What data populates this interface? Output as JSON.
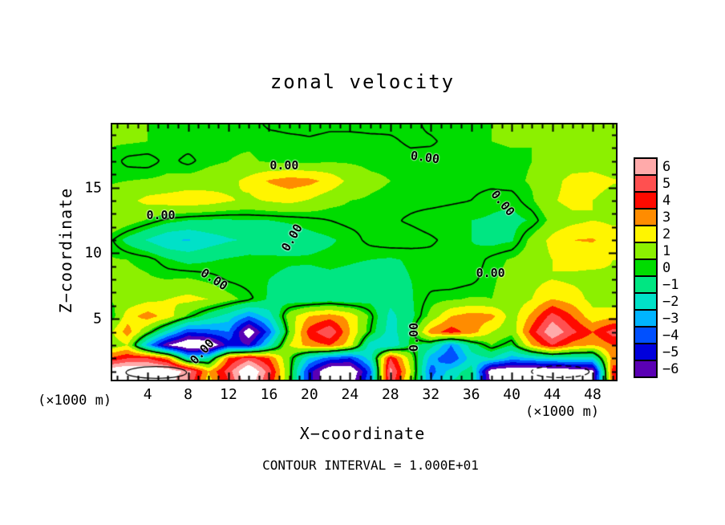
{
  "title": "zonal velocity",
  "xlabel": "X−coordinate",
  "ylabel": "Z−coordinate",
  "unit_label_left": "(×1000 m)",
  "unit_label_right": "(×1000 m)",
  "footer": "CONTOUR INTERVAL = 1.000E+01",
  "chart_data": {
    "type": "heatmap",
    "x_range": [
      0.5,
      50.3
    ],
    "z_range": [
      0.37,
      19.8
    ],
    "x_ticks_major": [
      4,
      8,
      12,
      16,
      20,
      24,
      28,
      32,
      36,
      40,
      44,
      48
    ],
    "x_tick_minor_step": 1,
    "y_ticks_major": [
      5,
      10,
      15
    ],
    "y_tick_minor_step": 1,
    "contour_interval": 10.0,
    "contour_label_text": "0.00",
    "colorbar": {
      "values": [
        6,
        5,
        4,
        3,
        2,
        1,
        0,
        -1,
        -2,
        -3,
        -4,
        -5,
        -6
      ],
      "labels": [
        "6",
        "5",
        "4",
        "3",
        "2",
        "1",
        "0",
        "−1",
        "−2",
        "−3",
        "−4",
        "−5",
        "−6"
      ],
      "colors": [
        "#FFAAAA",
        "#FF5050",
        "#FF0A00",
        "#FF8C00",
        "#FFF500",
        "#8CF000",
        "#00DC00",
        "#00E682",
        "#00E1C8",
        "#00B4FF",
        "#0050FF",
        "#0000DC",
        "#5A00B4"
      ],
      "out_of_range_color": "#FFFFFF"
    },
    "grid": {
      "x": [
        0,
        2,
        4,
        6,
        8,
        10,
        12,
        14,
        16,
        18,
        20,
        22,
        24,
        26,
        28,
        30,
        32,
        34,
        36,
        38,
        40,
        42,
        44,
        46,
        48,
        50
      ],
      "rows": [
        {
          "z": 20.0,
          "v": [
            0.5,
            0.5,
            0.5,
            0.5,
            0.5,
            0.4,
            0.4,
            0.3,
            -0.2,
            -0.3,
            -0.3,
            -0.2,
            -0.3,
            -0.3,
            -0.2,
            -0.2,
            0.2,
            0.4,
            0.5,
            0.5,
            0.5,
            0.5,
            0.5,
            0.5,
            0.5,
            0.5
          ]
        },
        {
          "z": 18.5,
          "v": [
            0.6,
            0.6,
            0.5,
            0.4,
            0.3,
            0.3,
            0.4,
            0.4,
            0.3,
            0.2,
            0.1,
            0.2,
            0.3,
            0.2,
            0.1,
            -0.1,
            -0.1,
            0.2,
            0.4,
            0.5,
            0.6,
            0.5,
            0.5,
            0.6,
            0.6,
            0.6
          ]
        },
        {
          "z": 17.0,
          "v": [
            0.4,
            -0.2,
            -0.3,
            0.2,
            -0.2,
            0.3,
            0.5,
            0.6,
            0.4,
            0.2,
            0.3,
            0.4,
            0.4,
            0.3,
            0.3,
            0.2,
            0.3,
            0.4,
            0.3,
            0.2,
            0.3,
            0.5,
            0.8,
            1.0,
            0.9,
            0.7
          ]
        },
        {
          "z": 15.5,
          "v": [
            0.4,
            0.5,
            0.6,
            0.7,
            0.9,
            1.0,
            1.2,
            1.8,
            2.6,
            3.0,
            2.8,
            2.2,
            1.2,
            0.7,
            0.5,
            0.4,
            0.3,
            0.3,
            0.2,
            0.2,
            0.3,
            0.6,
            1.2,
            1.8,
            2.0,
            1.6
          ]
        },
        {
          "z": 14.0,
          "v": [
            0.8,
            1.2,
            1.8,
            2.0,
            2.2,
            2.0,
            1.6,
            1.3,
            1.6,
            1.8,
            1.4,
            0.8,
            0.5,
            0.4,
            0.3,
            0.2,
            0.2,
            0.1,
            0.0,
            -0.3,
            -0.3,
            0.4,
            1.4,
            1.8,
            1.5,
            1.0
          ]
        },
        {
          "z": 12.5,
          "v": [
            1.5,
            1.0,
            0.4,
            -0.2,
            -0.5,
            -0.6,
            -0.6,
            -0.5,
            -0.5,
            -0.4,
            -0.2,
            0.0,
            0.2,
            0.2,
            0.1,
            -0.1,
            -0.3,
            -0.4,
            -0.5,
            -0.6,
            -0.8,
            -0.4,
            0.8,
            1.2,
            1.5,
            1.3
          ]
        },
        {
          "z": 11.0,
          "v": [
            0.3,
            -0.8,
            -1.6,
            -2.4,
            -2.6,
            -2.0,
            -1.6,
            -1.4,
            -1.2,
            -1.0,
            -0.8,
            -0.6,
            -0.3,
            0.2,
            0.4,
            0.3,
            0.1,
            -0.2,
            -0.5,
            -0.8,
            -0.6,
            0.8,
            1.8,
            2.5,
            2.6,
            2.0
          ]
        },
        {
          "z": 9.5,
          "v": [
            0.6,
            0.5,
            0.3,
            -0.4,
            -0.8,
            -0.6,
            -0.4,
            -0.2,
            -0.3,
            -0.4,
            -0.4,
            -0.3,
            -0.4,
            -0.5,
            -0.6,
            -0.4,
            -0.2,
            -0.3,
            -0.4,
            0.2,
            0.6,
            1.0,
            1.5,
            1.8,
            1.8,
            1.5
          ]
        },
        {
          "z": 8.0,
          "v": [
            0.8,
            0.7,
            0.6,
            0.5,
            0.6,
            0.3,
            -0.1,
            -0.3,
            -0.5,
            -0.7,
            -0.8,
            -0.7,
            -0.8,
            -1.0,
            -0.8,
            -0.5,
            -0.3,
            -0.4,
            -0.2,
            0.4,
            0.8,
            1.2,
            1.5,
            1.3,
            1.2,
            1.4
          ]
        },
        {
          "z": 6.5,
          "v": [
            0.5,
            0.8,
            1.2,
            1.5,
            1.8,
            1.5,
            0.8,
            0.2,
            -0.6,
            -1.0,
            -1.2,
            -1.0,
            -1.2,
            -0.8,
            -1.2,
            -0.6,
            0.2,
            0.4,
            0.6,
            0.5,
            0.8,
            1.5,
            2.5,
            2.0,
            1.2,
            0.8
          ]
        },
        {
          "z": 5.2,
          "v": [
            -0.5,
            2.0,
            3.0,
            2.0,
            0.3,
            -1.0,
            -2.0,
            -3.5,
            -2.0,
            1.0,
            2.5,
            3.0,
            2.2,
            0.3,
            -1.8,
            -0.8,
            0.8,
            2.5,
            3.0,
            2.8,
            1.0,
            2.8,
            5.0,
            3.5,
            1.8,
            2.2
          ]
        },
        {
          "z": 4.0,
          "v": [
            1.0,
            3.0,
            0.5,
            -2.0,
            -4.5,
            -4.0,
            -3.5,
            -7.5,
            -4.0,
            0.5,
            4.0,
            5.5,
            2.5,
            0.0,
            -2.0,
            -0.5,
            3.0,
            4.0,
            3.0,
            1.5,
            0.8,
            4.0,
            6.5,
            4.8,
            3.5,
            5.0
          ]
        },
        {
          "z": 3.0,
          "v": [
            0.5,
            1.5,
            -3.0,
            -6.5,
            -8.0,
            -8.0,
            -5.0,
            -5.5,
            -2.0,
            1.5,
            3.0,
            3.5,
            2.0,
            -2.0,
            -2.5,
            -0.3,
            -1.0,
            -3.5,
            -1.0,
            0.5,
            -0.5,
            2.5,
            4.5,
            3.0,
            2.5,
            3.5
          ]
        },
        {
          "z": 2.0,
          "v": [
            3.5,
            4.5,
            4.5,
            3.0,
            -2.0,
            -1.5,
            3.5,
            5.0,
            3.5,
            0.5,
            -2.5,
            -4.0,
            -4.5,
            -2.0,
            4.5,
            1.0,
            -3.0,
            -4.5,
            -2.0,
            -1.5,
            -3.0,
            -2.5,
            -2.0,
            -2.0,
            -2.0,
            3.0
          ]
        },
        {
          "z": 1.0,
          "v": [
            7.5,
            8.0,
            8.0,
            7.5,
            6.0,
            2.5,
            5.0,
            8.0,
            5.0,
            0.5,
            -5.0,
            -8.0,
            -8.0,
            -4.0,
            6.0,
            1.5,
            -4.0,
            -2.0,
            -1.0,
            -7.5,
            -8.0,
            -8.0,
            -8.0,
            -7.5,
            -7.0,
            4.0
          ]
        },
        {
          "z": 0.3,
          "v": [
            7.0,
            8.0,
            8.0,
            7.0,
            5.5,
            2.0,
            4.5,
            7.5,
            4.5,
            0.5,
            -5.0,
            -8.0,
            -7.5,
            -3.5,
            5.5,
            1.0,
            -3.5,
            -1.5,
            -1.0,
            -7.0,
            -8.0,
            -8.0,
            -8.0,
            -7.0,
            -6.5,
            3.5
          ]
        }
      ]
    },
    "contour_zero_labels": [
      {
        "x": 5.3,
        "z": 12.9,
        "rot": 0
      },
      {
        "x": 17.5,
        "z": 16.7,
        "rot": 0
      },
      {
        "x": 31.4,
        "z": 17.3,
        "rot": 8
      },
      {
        "x": 39.1,
        "z": 13.8,
        "rot": 50
      },
      {
        "x": 10.6,
        "z": 8.0,
        "rot": 33
      },
      {
        "x": 37.9,
        "z": 8.5,
        "rot": 0
      },
      {
        "x": 30.3,
        "z": 3.6,
        "rot": -90
      },
      {
        "x": 9.4,
        "z": 2.5,
        "rot": -48
      },
      {
        "x": 18.3,
        "z": 11.2,
        "rot": -60
      }
    ],
    "extra_contours": [
      {
        "level": 10,
        "cx": 4.85,
        "cz": 0.92,
        "rx": 3.0,
        "rz": 0.45,
        "style": "solid"
      },
      {
        "level": -10,
        "cx": 44.8,
        "cz": 0.98,
        "rx": 2.85,
        "rz": 0.45,
        "style": "dashed"
      }
    ]
  }
}
